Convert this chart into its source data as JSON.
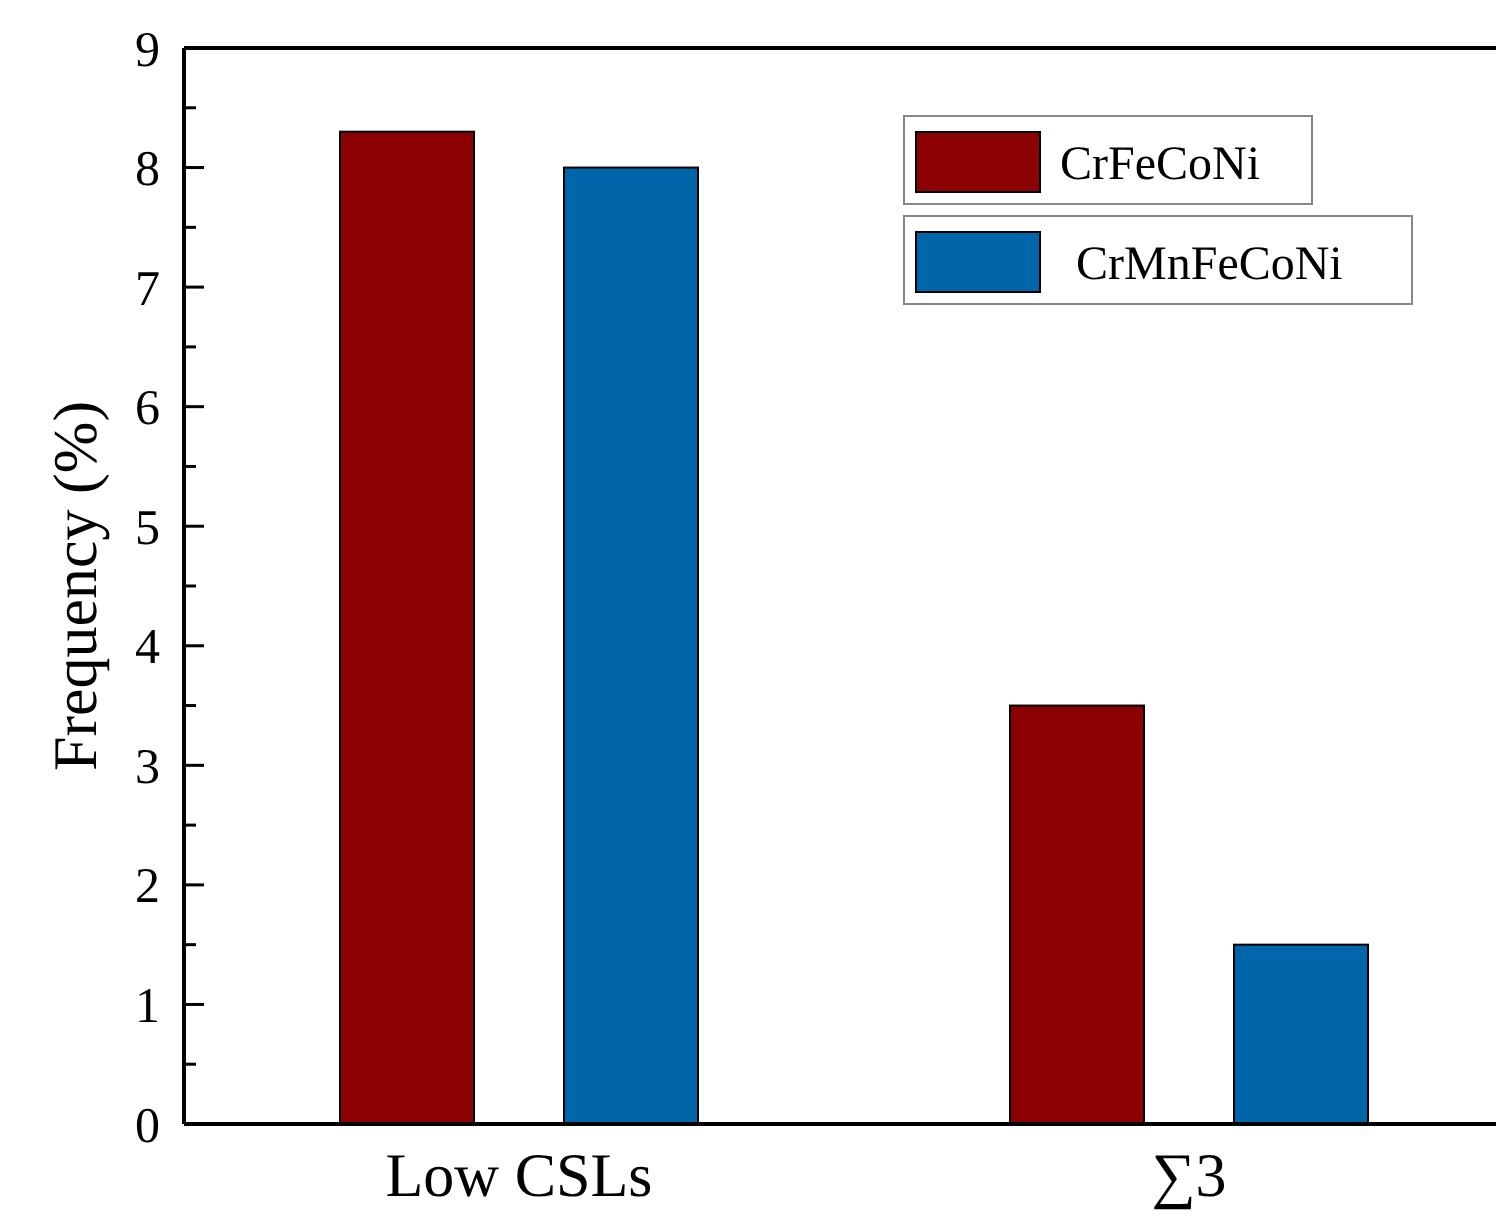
{
  "chart_data": {
    "type": "bar",
    "ylabel": "Frequency (%)",
    "categories": [
      "Low CSLs",
      "∑3"
    ],
    "series": [
      {
        "name": "CrFeCoNi",
        "color": "#8b0000",
        "values": [
          8.3,
          3.5
        ]
      },
      {
        "name": "CrMnFeCoNi",
        "color": "#0066aa",
        "values": [
          8.0,
          1.5
        ]
      }
    ],
    "ylim": [
      0,
      9
    ],
    "yticks": [
      0,
      {
        "value": 0.5,
        "label": null
      },
      1,
      {
        "value": 1.5,
        "label": null
      },
      2,
      {
        "value": 2.5,
        "label": null
      },
      3,
      {
        "value": 3.5,
        "label": null
      },
      4,
      {
        "value": 4.5,
        "label": null
      },
      5,
      {
        "value": 5.5,
        "label": null
      },
      6,
      {
        "value": 6.5,
        "label": null
      },
      7,
      {
        "value": 7.5,
        "label": null
      },
      8,
      {
        "value": 8.5,
        "label": null
      },
      9
    ],
    "legend": "top right",
    "grid": false
  }
}
